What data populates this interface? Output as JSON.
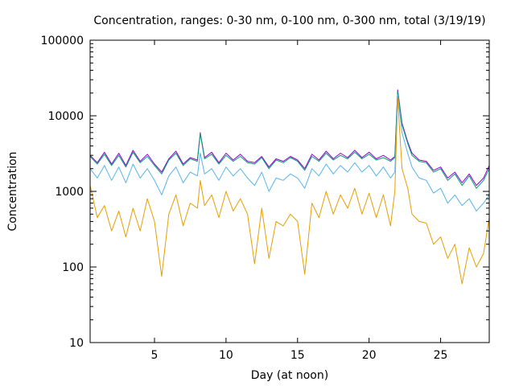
{
  "chart_data": {
    "type": "line",
    "title": "Concentration, ranges: 0-30 nm, 0-100 nm, 0-300 nm, total (3/19/19)",
    "xlabel": "Day (at noon)",
    "ylabel": "Concentration",
    "x_scale": "linear",
    "y_scale": "log",
    "xlim": [
      0.5,
      28.4
    ],
    "ylim": [
      10,
      100000
    ],
    "x_ticks": [
      5,
      10,
      15,
      20,
      25
    ],
    "x_tick_labels": [
      "5",
      "10",
      "15",
      "20",
      "25"
    ],
    "y_ticks": [
      10,
      100,
      1000,
      10000,
      100000
    ],
    "y_tick_labels": [
      "10",
      "100",
      "1000",
      "10000",
      "100000"
    ],
    "grid": false,
    "legend": "none",
    "x": [
      0.5,
      1.0,
      1.5,
      2.0,
      2.5,
      3.0,
      3.5,
      4.0,
      4.5,
      5.0,
      5.5,
      6.0,
      6.5,
      7.0,
      7.5,
      8.0,
      8.2,
      8.5,
      9.0,
      9.5,
      10.0,
      10.5,
      11.0,
      11.5,
      12.0,
      12.5,
      13.0,
      13.5,
      14.0,
      14.5,
      15.0,
      15.5,
      16.0,
      16.5,
      17.0,
      17.5,
      18.0,
      18.5,
      19.0,
      19.5,
      20.0,
      20.5,
      21.0,
      21.5,
      21.8,
      22.0,
      22.3,
      22.7,
      23.0,
      23.5,
      24.0,
      24.5,
      25.0,
      25.5,
      26.0,
      26.5,
      27.0,
      27.5,
      28.0,
      28.4
    ],
    "series": [
      {
        "color": "#9400d3",
        "values": [
          3000,
          2400,
          3300,
          2300,
          3200,
          2200,
          3500,
          2500,
          3100,
          2300,
          1800,
          2700,
          3400,
          2300,
          2800,
          2600,
          6000,
          2800,
          3300,
          2400,
          3200,
          2600,
          3100,
          2500,
          2400,
          2900,
          2100,
          2700,
          2500,
          2900,
          2600,
          2000,
          3100,
          2600,
          3400,
          2700,
          3200,
          2800,
          3500,
          2800,
          3300,
          2700,
          3000,
          2600,
          2900,
          22000,
          8000,
          4500,
          3200,
          2600,
          2500,
          1900,
          2100,
          1500,
          1800,
          1300,
          1700,
          1200,
          1500,
          2200
        ]
      },
      {
        "color": "#009e73",
        "values": [
          2900,
          2300,
          3100,
          2200,
          3000,
          2100,
          3300,
          2400,
          2900,
          2200,
          1700,
          2600,
          3200,
          2200,
          2700,
          2500,
          5800,
          2700,
          3100,
          2300,
          3000,
          2500,
          2900,
          2400,
          2300,
          2800,
          2000,
          2600,
          2400,
          2800,
          2500,
          1900,
          2900,
          2500,
          3200,
          2600,
          3000,
          2700,
          3300,
          2700,
          3100,
          2600,
          2800,
          2500,
          2800,
          21000,
          7600,
          4300,
          3000,
          2500,
          2400,
          1800,
          2000,
          1400,
          1700,
          1200,
          1600,
          1100,
          1400,
          2000
        ]
      },
      {
        "color": "#56b4e9",
        "values": [
          2000,
          1500,
          2200,
          1400,
          2100,
          1300,
          2300,
          1500,
          2000,
          1400,
          900,
          1600,
          2100,
          1300,
          1800,
          1600,
          3200,
          1700,
          2000,
          1400,
          2100,
          1600,
          2000,
          1500,
          1200,
          1800,
          1000,
          1500,
          1400,
          1700,
          1500,
          1100,
          2000,
          1600,
          2300,
          1700,
          2200,
          1800,
          2400,
          1800,
          2200,
          1600,
          2100,
          1500,
          1800,
          19000,
          6000,
          3200,
          2100,
          1500,
          1400,
          950,
          1100,
          700,
          900,
          650,
          800,
          550,
          700,
          900
        ]
      },
      {
        "color": "#e69f00",
        "values": [
          1200,
          450,
          650,
          300,
          550,
          250,
          600,
          300,
          800,
          400,
          75,
          500,
          900,
          350,
          700,
          600,
          1400,
          650,
          900,
          450,
          1000,
          550,
          800,
          500,
          110,
          600,
          130,
          400,
          350,
          500,
          400,
          80,
          700,
          450,
          1000,
          500,
          900,
          600,
          1100,
          500,
          950,
          450,
          900,
          350,
          1000,
          17000,
          2000,
          1100,
          500,
          400,
          380,
          200,
          250,
          130,
          200,
          60,
          180,
          100,
          150,
          450
        ]
      }
    ]
  }
}
